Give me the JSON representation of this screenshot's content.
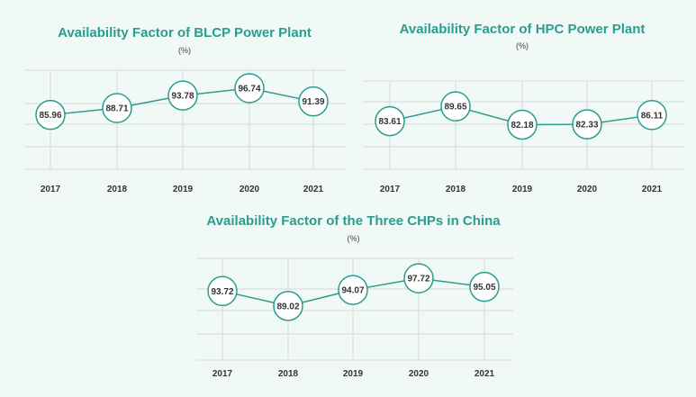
{
  "colors": {
    "accent": "#2a9d8f",
    "grid": "#d5d9d8",
    "text": "#333333"
  },
  "chart_data": [
    {
      "type": "line",
      "title": "Availability Factor of BLCP Power Plant",
      "unit": "(%)",
      "categories": [
        "2017",
        "2018",
        "2019",
        "2020",
        "2021"
      ],
      "values": [
        85.96,
        88.71,
        93.78,
        96.74,
        91.39
      ],
      "labels": [
        "85.96",
        "88.71",
        "93.78",
        "96.74",
        "91.39"
      ],
      "ylim": [
        64,
        104
      ],
      "grid": true
    },
    {
      "type": "line",
      "title": "Availability Factor of HPC Power Plant",
      "unit": "(%)",
      "categories": [
        "2017",
        "2018",
        "2019",
        "2020",
        "2021"
      ],
      "values": [
        83.61,
        89.65,
        82.18,
        82.33,
        86.11
      ],
      "labels": [
        "83.61",
        "89.65",
        "82.18",
        "82.33",
        "86.11"
      ],
      "ylim": [
        64,
        100
      ],
      "grid": true
    },
    {
      "type": "line",
      "title": "Availability Factor of the Three CHPs in China",
      "unit": "(%)",
      "categories": [
        "2017",
        "2018",
        "2019",
        "2020",
        "2021"
      ],
      "values": [
        93.72,
        89.02,
        94.07,
        97.72,
        95.05
      ],
      "labels": [
        "93.72",
        "89.02",
        "94.07",
        "97.72",
        "95.05"
      ],
      "ylim": [
        72,
        104
      ],
      "grid": true
    }
  ]
}
